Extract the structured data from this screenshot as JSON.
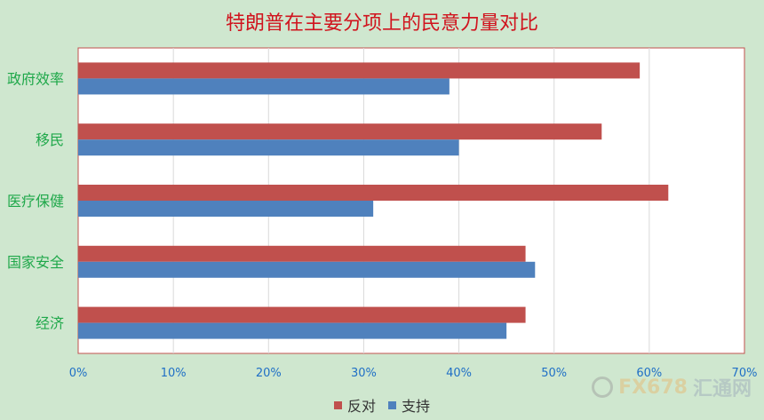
{
  "chart_data": {
    "type": "bar",
    "orientation": "horizontal",
    "title": "特朗普在主要分项上的民意力量对比",
    "categories": [
      "政府效率",
      "移民",
      "医疗保健",
      "国家安全",
      "经济"
    ],
    "series": [
      {
        "name": "反对",
        "color": "#c0504d",
        "values": [
          59,
          55,
          62,
          47,
          47
        ]
      },
      {
        "name": "支持",
        "color": "#4f81bd",
        "values": [
          39,
          40,
          31,
          48,
          45
        ]
      }
    ],
    "x_ticks": [
      "0%",
      "10%",
      "20%",
      "30%",
      "40%",
      "50%",
      "60%",
      "70%"
    ],
    "xlim": [
      0,
      70
    ],
    "grid": true,
    "legend_position": "bottom",
    "colors": {
      "background": "#cfe7cf",
      "plot_background": "#ffffff",
      "plot_border": "#c0504d",
      "category_label": "#1fa84a",
      "tick_label": "#1f6fc6",
      "title": "#d0141e"
    }
  },
  "watermark": {
    "part1": "FX678",
    "part2": "汇通网"
  }
}
